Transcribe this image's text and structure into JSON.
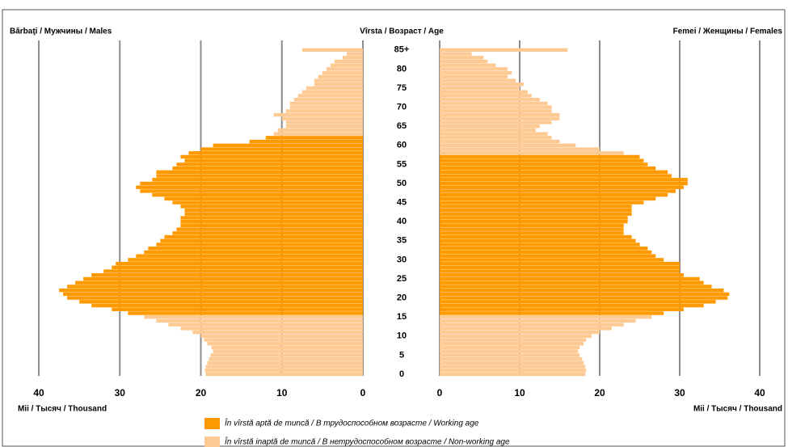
{
  "chart_data": {
    "type": "pyramid",
    "left_label": "Bărbaţi / Мужчины / Males",
    "center_label": "Vîrsta / Возраст / Age",
    "right_label": "Femei / Женщины / Females",
    "x_label": "Mii / Тысяч / Thousand",
    "categories": [
      "0",
      null,
      null,
      null,
      null,
      "5",
      null,
      null,
      null,
      null,
      "10",
      null,
      null,
      null,
      null,
      "15",
      null,
      null,
      null,
      null,
      "20",
      null,
      null,
      null,
      null,
      "25",
      null,
      null,
      null,
      null,
      "30",
      null,
      null,
      null,
      null,
      "35",
      null,
      null,
      null,
      null,
      "40",
      null,
      null,
      null,
      null,
      "45",
      null,
      null,
      null,
      null,
      "50",
      null,
      null,
      null,
      null,
      "55",
      null,
      null,
      null,
      null,
      "60",
      null,
      null,
      null,
      null,
      "65",
      null,
      null,
      null,
      null,
      "70",
      null,
      null,
      null,
      null,
      "75",
      null,
      null,
      null,
      null,
      "80",
      null,
      null,
      null,
      null,
      "85+"
    ],
    "xlim": [
      0,
      40
    ],
    "xticks": [
      0,
      10,
      20,
      30,
      40
    ],
    "grid": true,
    "series": [
      {
        "name": "În vîrstă aptă de muncă / В трудоспособном возрасте / Working age",
        "color": "#ff9900",
        "males": [
          null,
          null,
          null,
          null,
          null,
          null,
          null,
          null,
          null,
          null,
          null,
          null,
          null,
          null,
          null,
          null,
          29,
          31,
          33.5,
          35,
          36.5,
          37,
          37.5,
          36.5,
          35.5,
          34.5,
          33.5,
          32,
          31,
          30.5,
          29,
          28,
          27,
          26.5,
          25.5,
          25,
          24.5,
          23.5,
          23,
          22.5,
          22.5,
          22.5,
          22,
          22,
          22.5,
          23.5,
          24.5,
          26,
          27.5,
          28,
          27.5,
          26,
          25.5,
          25.5,
          23.5,
          23,
          22,
          22.5,
          21.5,
          20,
          18.5,
          14,
          12,
          null,
          null,
          null,
          null,
          null,
          null,
          null,
          null,
          null,
          null,
          null,
          null,
          null,
          null,
          null,
          null,
          null,
          null,
          null,
          null,
          null,
          null,
          null
        ],
        "females": [
          null,
          null,
          null,
          null,
          null,
          null,
          null,
          null,
          null,
          null,
          null,
          null,
          null,
          null,
          null,
          null,
          28,
          30.5,
          33,
          34.5,
          36,
          36.2,
          35.5,
          34,
          33,
          32.5,
          30.5,
          30,
          30,
          30,
          28,
          27,
          26.5,
          26,
          25,
          24.5,
          24,
          23,
          23,
          23,
          23.5,
          23.5,
          24,
          24,
          24,
          25.5,
          27,
          28.5,
          29.5,
          30.5,
          31,
          31,
          29,
          28.5,
          27,
          26,
          25.5,
          25,
          null,
          null,
          null,
          null,
          null,
          null,
          null,
          null,
          null,
          null,
          null,
          null,
          null,
          null,
          null,
          null,
          null,
          null,
          null,
          null,
          null,
          null,
          null,
          null,
          null,
          null,
          null,
          null
        ]
      },
      {
        "name": "În vîrstă inaptă de muncă / В нетрудоспособном возрасте / Non-working age",
        "color": "#fdca93",
        "males": [
          19.4,
          19.5,
          19.4,
          19.2,
          19,
          18.8,
          18.5,
          18.7,
          19.2,
          19.6,
          20,
          21,
          22.5,
          24,
          25.5,
          27,
          null,
          null,
          null,
          null,
          null,
          null,
          null,
          null,
          null,
          null,
          null,
          null,
          null,
          null,
          null,
          null,
          null,
          null,
          null,
          null,
          null,
          null,
          null,
          null,
          null,
          null,
          null,
          null,
          null,
          null,
          null,
          null,
          null,
          null,
          null,
          null,
          null,
          null,
          null,
          null,
          null,
          null,
          null,
          null,
          null,
          null,
          null,
          11,
          10.5,
          9.5,
          9.5,
          10,
          11,
          9.5,
          9,
          9,
          8.5,
          8,
          7.5,
          7,
          6,
          6,
          5.5,
          5,
          4.5,
          4,
          3.5,
          2.5,
          2,
          7.5
        ],
        "females": [
          18.2,
          18.3,
          18.2,
          18,
          17.8,
          17.5,
          17.3,
          17.5,
          18,
          18.3,
          19,
          20,
          21.5,
          23,
          24.5,
          26.5,
          null,
          null,
          null,
          null,
          null,
          null,
          null,
          null,
          null,
          null,
          null,
          null,
          null,
          null,
          null,
          null,
          null,
          null,
          null,
          null,
          null,
          null,
          null,
          null,
          null,
          null,
          null,
          null,
          null,
          null,
          null,
          null,
          null,
          null,
          null,
          null,
          null,
          null,
          null,
          null,
          null,
          null,
          23,
          20,
          17,
          15,
          14,
          13.5,
          12,
          12.5,
          14,
          15,
          15,
          14,
          14,
          13.5,
          12.5,
          11.5,
          11,
          10,
          10.5,
          9.5,
          8.5,
          9,
          8.5,
          7,
          6,
          5.5,
          4,
          16
        ]
      }
    ]
  }
}
